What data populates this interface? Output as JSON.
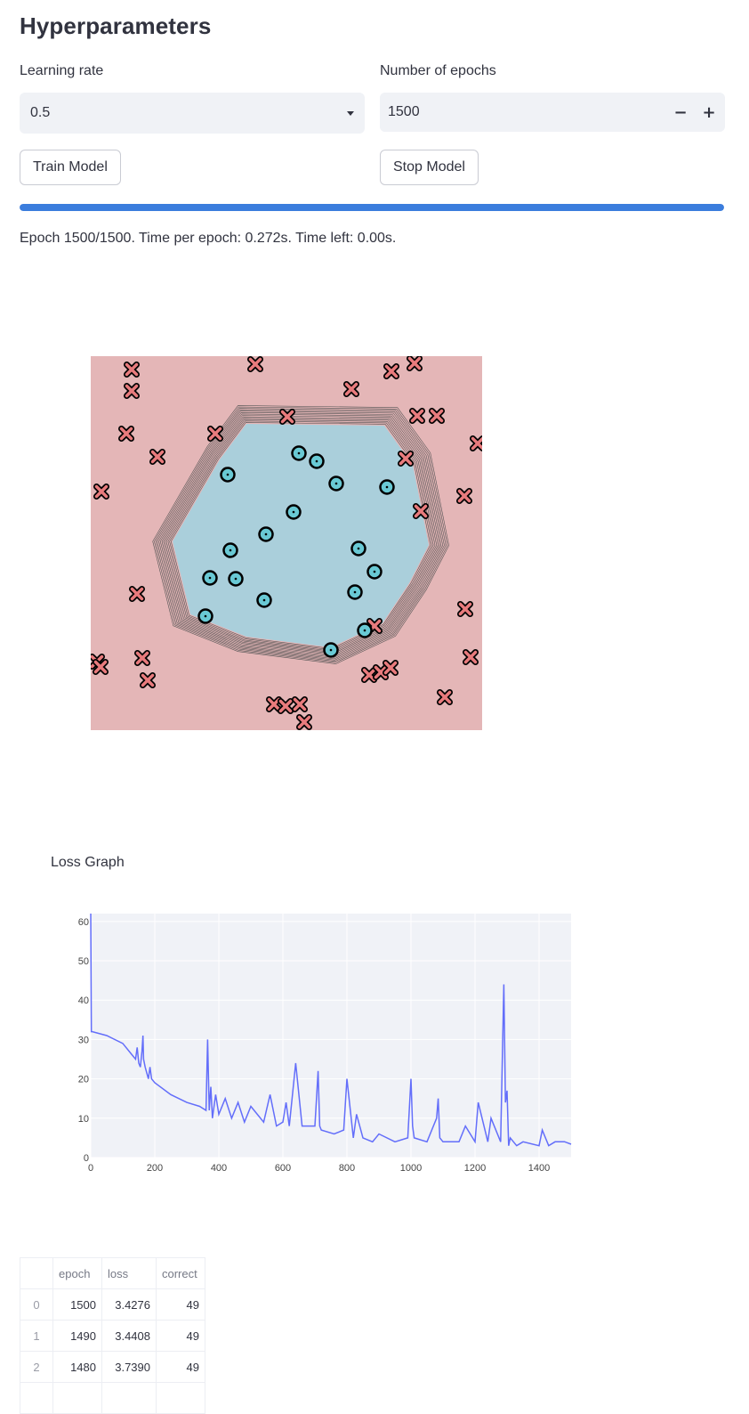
{
  "page_title": "Hyperparameters",
  "learning_rate": {
    "label": "Learning rate",
    "value": "0.5"
  },
  "epochs": {
    "label": "Number of epochs",
    "value": "1500",
    "minus": "−",
    "plus": "+"
  },
  "buttons": {
    "train": "Train Model",
    "stop": "Stop Model"
  },
  "progress": {
    "fraction": 1.0,
    "color": "#3b7ddd"
  },
  "status_text": "Epoch 1500/1500. Time per epoch: 0.272s. Time left: 0.00s.",
  "decision_plot": {
    "bg_outer": "#e4b6b7",
    "bg_inner": "#aacfdb",
    "x_marker_color": "#e97b7d",
    "o_marker_color": "#69c9d4"
  },
  "loss_graph": {
    "title": "Loss Graph",
    "line_color": "#636efa"
  },
  "chart_data": {
    "type": "line",
    "title": "Loss Graph",
    "xlabel": "",
    "ylabel": "",
    "xlim": [
      0,
      1500
    ],
    "ylim": [
      0,
      62
    ],
    "x_ticks": [
      "0",
      "200",
      "400",
      "600",
      "800",
      "1000",
      "1200",
      "1400"
    ],
    "y_ticks": [
      "0",
      "10",
      "20",
      "30",
      "40",
      "50",
      "60"
    ],
    "grid": true,
    "series": [
      {
        "x": [
          0,
          2,
          5,
          50,
          100,
          130,
          140,
          145,
          150,
          155,
          160,
          163,
          165,
          170,
          180,
          185,
          190,
          200,
          250,
          300,
          340,
          360,
          365,
          370,
          375,
          380,
          390,
          400,
          420,
          440,
          460,
          480,
          500,
          540,
          560,
          580,
          600,
          610,
          620,
          640,
          660,
          700,
          710,
          715,
          720,
          760,
          790,
          800,
          820,
          830,
          850,
          880,
          900,
          950,
          990,
          1000,
          1005,
          1010,
          1050,
          1080,
          1085,
          1090,
          1100,
          1150,
          1170,
          1200,
          1210,
          1240,
          1250,
          1280,
          1290,
          1295,
          1300,
          1305,
          1310,
          1330,
          1350,
          1400,
          1410,
          1430,
          1450,
          1480,
          1500
        ],
        "y": [
          62,
          32,
          32,
          31,
          29,
          26,
          25,
          28,
          24,
          23,
          27,
          31,
          25,
          23,
          20,
          23,
          20,
          19,
          16,
          14,
          13,
          12,
          30,
          12,
          18,
          10,
          16,
          11,
          15,
          10,
          14,
          9,
          13,
          9,
          16,
          8,
          9,
          14,
          8,
          24,
          8,
          8,
          22,
          8,
          7,
          6,
          7,
          20,
          5,
          11,
          5,
          4,
          6,
          4,
          5,
          20,
          8,
          5,
          4,
          10,
          15,
          5,
          4,
          4,
          8,
          4,
          14,
          4,
          10,
          4,
          44,
          14,
          17,
          3,
          5,
          3,
          4,
          3,
          7,
          3,
          4,
          4,
          3.4
        ]
      }
    ]
  },
  "table": {
    "columns": [
      "",
      "epoch",
      "loss",
      "correct"
    ],
    "rows": [
      [
        "0",
        "1500",
        "3.4276",
        "49"
      ],
      [
        "1",
        "1490",
        "3.4408",
        "49"
      ],
      [
        "2",
        "1480",
        "3.7390",
        "49"
      ],
      [
        "",
        "",
        "",
        ""
      ]
    ]
  }
}
